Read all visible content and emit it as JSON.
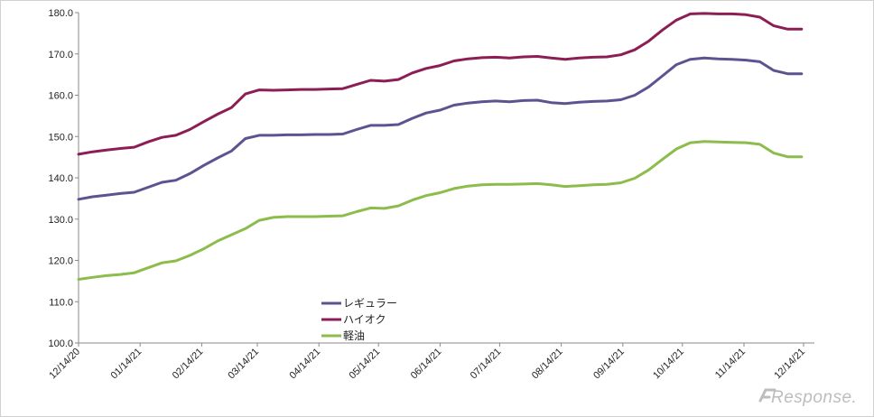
{
  "chart_data": {
    "type": "line",
    "ylim": [
      100,
      180
    ],
    "yticks": [
      "100.0",
      "110.0",
      "120.0",
      "130.0",
      "140.0",
      "150.0",
      "160.0",
      "170.0",
      "180.0"
    ],
    "ytick_values": [
      100,
      110,
      120,
      130,
      140,
      150,
      160,
      170,
      180
    ],
    "xticks": [
      "12/14/20",
      "01/14/21",
      "02/14/21",
      "03/14/21",
      "04/14/21",
      "05/14/21",
      "06/14/21",
      "07/14/21",
      "08/14/21",
      "09/14/21",
      "10/14/21",
      "11/14/21",
      "12/14/21"
    ],
    "x": [
      "12/14/20",
      "12/21/20",
      "12/28/20",
      "01/04/21",
      "01/11/21",
      "01/18/21",
      "01/25/21",
      "02/01/21",
      "02/08/21",
      "02/15/21",
      "02/22/21",
      "03/01/21",
      "03/08/21",
      "03/15/21",
      "03/22/21",
      "03/29/21",
      "04/05/21",
      "04/12/21",
      "04/19/21",
      "04/26/21",
      "05/03/21",
      "05/10/21",
      "05/17/21",
      "05/24/21",
      "05/31/21",
      "06/07/21",
      "06/14/21",
      "06/21/21",
      "06/28/21",
      "07/05/21",
      "07/12/21",
      "07/19/21",
      "07/26/21",
      "08/02/21",
      "08/09/21",
      "08/16/21",
      "08/23/21",
      "08/30/21",
      "09/06/21",
      "09/13/21",
      "09/20/21",
      "09/27/21",
      "10/04/21",
      "10/11/21",
      "10/18/21",
      "10/25/21",
      "11/01/21",
      "11/08/21",
      "11/15/21",
      "11/22/21",
      "11/29/21",
      "12/06/21",
      "12/13/21"
    ],
    "series": [
      {
        "name": "レギュラー",
        "color": "#5c5491",
        "values": [
          134.8,
          135.4,
          135.8,
          136.2,
          136.5,
          137.7,
          138.9,
          139.4,
          141.0,
          143.0,
          144.8,
          146.5,
          149.5,
          150.3,
          150.3,
          150.4,
          150.4,
          150.5,
          150.5,
          150.6,
          151.7,
          152.7,
          152.7,
          152.9,
          154.4,
          155.7,
          156.4,
          157.6,
          158.1,
          158.4,
          158.6,
          158.4,
          158.7,
          158.8,
          158.2,
          158.0,
          158.3,
          158.5,
          158.6,
          158.9,
          160.0,
          162.0,
          164.7,
          167.4,
          168.7,
          169.0,
          168.8,
          168.7,
          168.5,
          168.1,
          166.0,
          165.2,
          165.2
        ]
      },
      {
        "name": "ハイオク",
        "color": "#8c1e55",
        "values": [
          145.7,
          146.3,
          146.7,
          147.1,
          147.4,
          148.7,
          149.8,
          150.3,
          151.7,
          153.6,
          155.4,
          157.0,
          160.3,
          161.3,
          161.2,
          161.3,
          161.4,
          161.4,
          161.5,
          161.6,
          162.6,
          163.6,
          163.4,
          163.8,
          165.4,
          166.5,
          167.2,
          168.3,
          168.8,
          169.1,
          169.2,
          169.0,
          169.3,
          169.4,
          169.0,
          168.7,
          169.0,
          169.2,
          169.3,
          169.8,
          171.0,
          173.1,
          175.8,
          178.2,
          179.7,
          179.8,
          179.7,
          179.7,
          179.5,
          178.9,
          176.8,
          176.0,
          176.0
        ]
      },
      {
        "name": "軽油",
        "color": "#8cbc4b",
        "values": [
          115.4,
          115.9,
          116.3,
          116.6,
          117.0,
          118.2,
          119.4,
          119.9,
          121.2,
          122.8,
          124.7,
          126.2,
          127.7,
          129.7,
          130.4,
          130.6,
          130.6,
          130.6,
          130.7,
          130.8,
          131.8,
          132.7,
          132.6,
          133.2,
          134.6,
          135.7,
          136.4,
          137.4,
          138.0,
          138.3,
          138.4,
          138.4,
          138.5,
          138.6,
          138.3,
          137.9,
          138.1,
          138.3,
          138.4,
          138.8,
          139.9,
          141.9,
          144.5,
          147.0,
          148.5,
          148.8,
          148.7,
          148.6,
          148.5,
          148.1,
          146.0,
          145.1,
          145.1
        ]
      }
    ],
    "legend_position": "center-bottom",
    "grid": false
  },
  "watermark": "Response."
}
